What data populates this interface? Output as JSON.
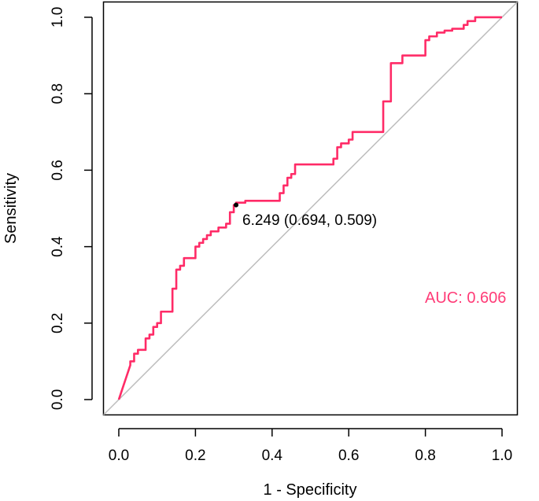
{
  "chart_data": {
    "type": "line",
    "xlabel": "1 - Specificity",
    "ylabel": "Sensitivity",
    "xlim": [
      -0.04,
      1.04
    ],
    "ylim": [
      -0.04,
      1.04
    ],
    "x_ticks": [
      "0.0",
      "0.2",
      "0.4",
      "0.6",
      "0.8",
      "1.0"
    ],
    "y_ticks": [
      "0.0",
      "0.2",
      "0.4",
      "0.6",
      "0.8",
      "1.0"
    ],
    "grid": false,
    "reference_line": {
      "from": [
        -0.04,
        -0.04
      ],
      "to": [
        1.04,
        1.04
      ],
      "color": "#bdbdbd"
    },
    "series": [
      {
        "color": "#ff2b67",
        "x": [
          0.0,
          0.01,
          0.02,
          0.03,
          0.03,
          0.04,
          0.04,
          0.05,
          0.05,
          0.07,
          0.07,
          0.08,
          0.08,
          0.09,
          0.09,
          0.1,
          0.1,
          0.11,
          0.11,
          0.12,
          0.12,
          0.14,
          0.14,
          0.15,
          0.15,
          0.16,
          0.16,
          0.17,
          0.17,
          0.2,
          0.2,
          0.21,
          0.21,
          0.22,
          0.22,
          0.23,
          0.23,
          0.24,
          0.24,
          0.26,
          0.26,
          0.28,
          0.28,
          0.29,
          0.29,
          0.3,
          0.3,
          0.306,
          0.306,
          0.33,
          0.33,
          0.42,
          0.42,
          0.43,
          0.43,
          0.44,
          0.44,
          0.45,
          0.45,
          0.46,
          0.46,
          0.56,
          0.56,
          0.57,
          0.57,
          0.58,
          0.58,
          0.6,
          0.6,
          0.61,
          0.61,
          0.69,
          0.69,
          0.71,
          0.71,
          0.74,
          0.74,
          0.8,
          0.8,
          0.81,
          0.81,
          0.83,
          0.83,
          0.85,
          0.85,
          0.87,
          0.87,
          0.9,
          0.9,
          0.91,
          0.91,
          0.93,
          0.93,
          0.94,
          0.94,
          0.96,
          0.96,
          1.0
        ],
        "y": [
          0.0,
          0.03,
          0.06,
          0.09,
          0.1,
          0.1,
          0.12,
          0.12,
          0.13,
          0.13,
          0.16,
          0.16,
          0.17,
          0.17,
          0.19,
          0.19,
          0.2,
          0.2,
          0.23,
          0.23,
          0.23,
          0.23,
          0.29,
          0.29,
          0.34,
          0.34,
          0.35,
          0.35,
          0.37,
          0.37,
          0.4,
          0.4,
          0.41,
          0.41,
          0.42,
          0.42,
          0.43,
          0.43,
          0.44,
          0.44,
          0.45,
          0.45,
          0.46,
          0.46,
          0.49,
          0.49,
          0.509,
          0.509,
          0.515,
          0.515,
          0.52,
          0.52,
          0.54,
          0.54,
          0.56,
          0.56,
          0.58,
          0.58,
          0.59,
          0.59,
          0.615,
          0.615,
          0.63,
          0.63,
          0.66,
          0.66,
          0.67,
          0.67,
          0.68,
          0.68,
          0.7,
          0.7,
          0.78,
          0.78,
          0.88,
          0.88,
          0.9,
          0.9,
          0.94,
          0.94,
          0.95,
          0.95,
          0.96,
          0.96,
          0.965,
          0.965,
          0.97,
          0.97,
          0.98,
          0.98,
          0.99,
          0.99,
          1.0,
          1.0,
          1.0,
          1.0,
          1.0,
          1.0
        ]
      }
    ],
    "annotations": [
      {
        "x": 0.306,
        "y": 0.509,
        "text": "6.249 (0.694, 0.509)"
      },
      {
        "text": "AUC: 0.606",
        "color": "#ff3b77"
      }
    ]
  }
}
